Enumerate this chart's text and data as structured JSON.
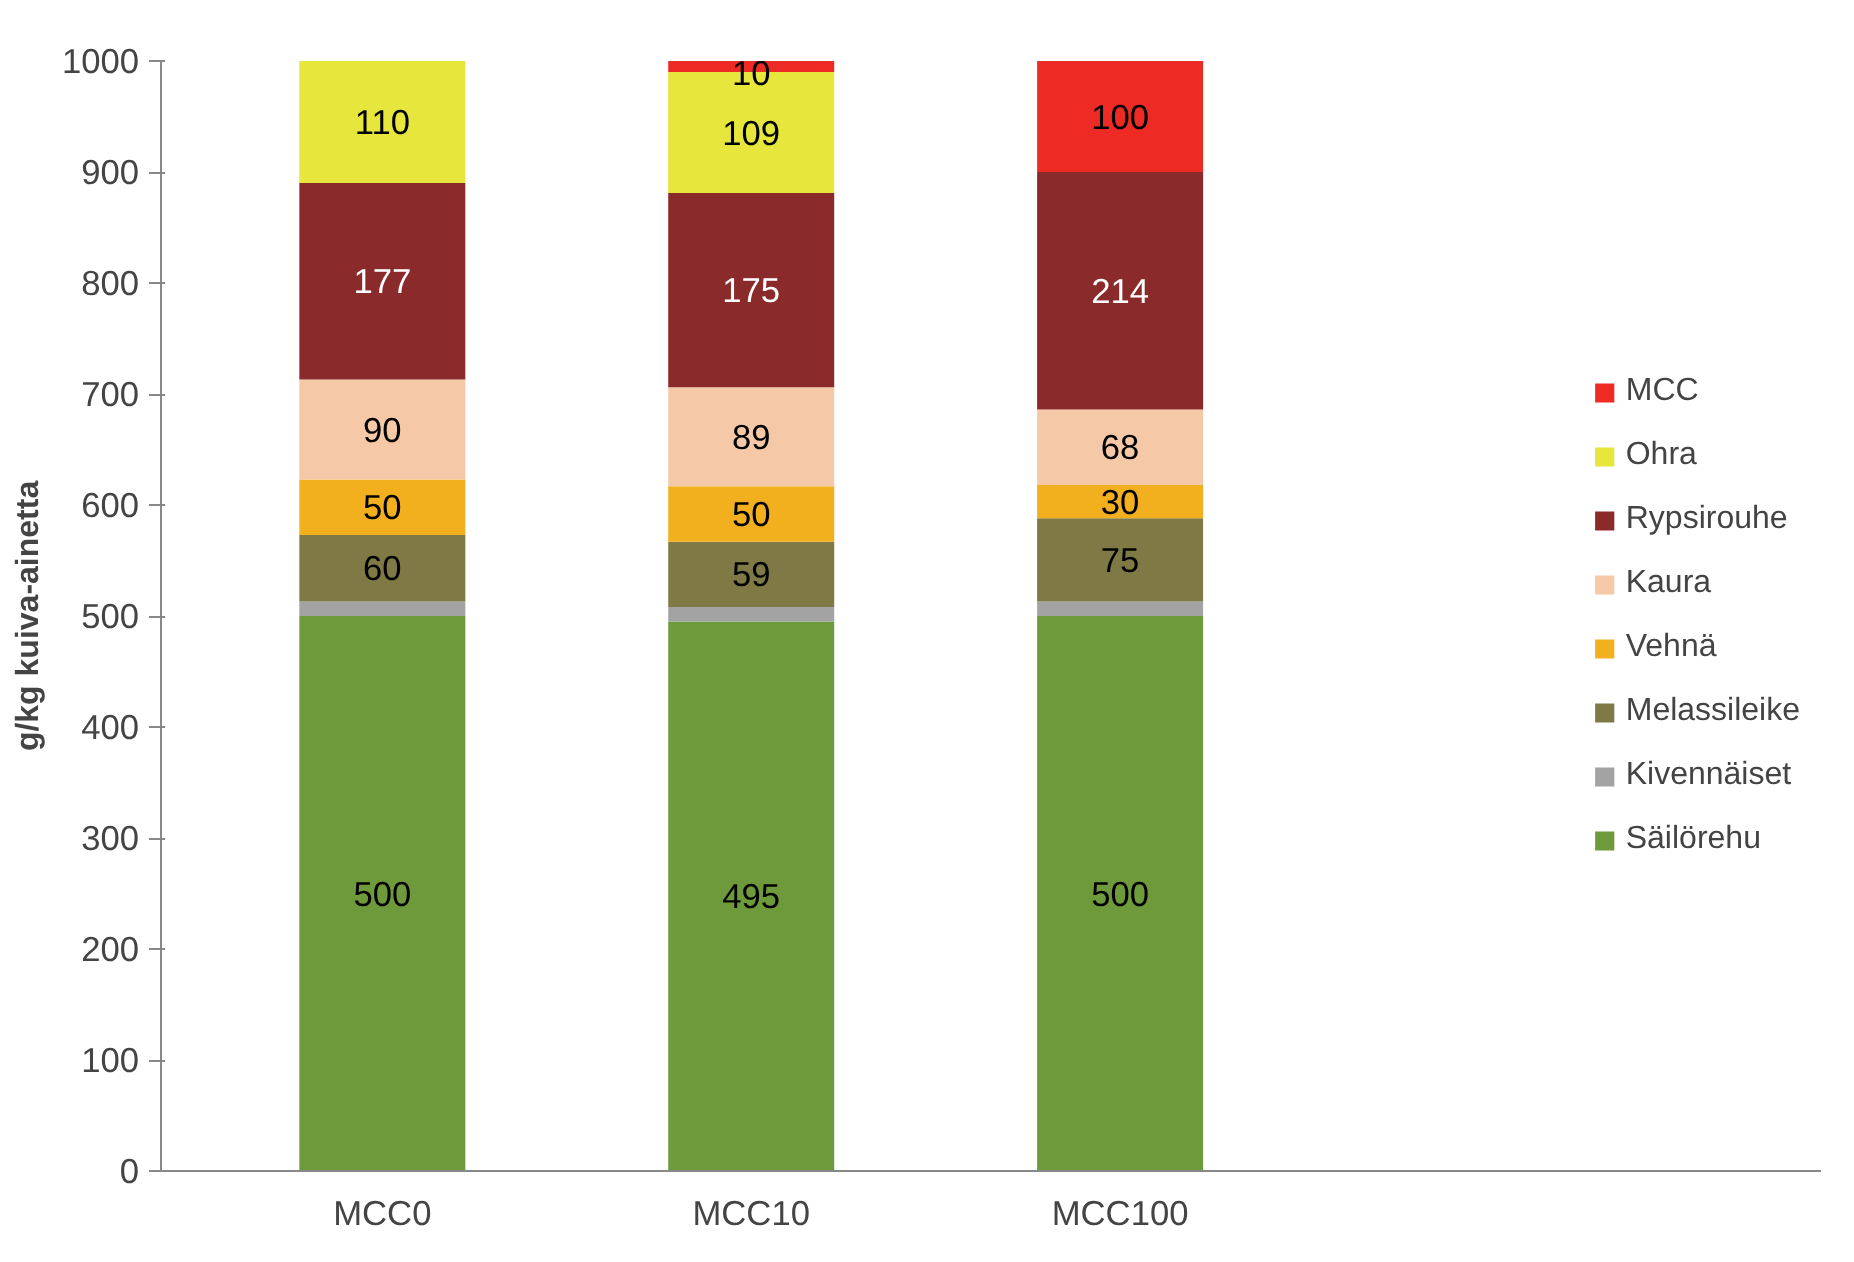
{
  "chart_data": {
    "type": "bar",
    "stacked": true,
    "ylabel": "g/kg kuiva-ainetta",
    "categories": [
      "MCC0",
      "MCC10",
      "MCC100"
    ],
    "series": [
      {
        "name": "Säilörehu",
        "color": "#6f9a3c",
        "values": [
          500,
          495,
          500
        ],
        "value_labels": [
          "500",
          "495",
          "500"
        ]
      },
      {
        "name": "Kivennäiset",
        "color": "#a3a3a3",
        "values": [
          13,
          13,
          13
        ],
        "value_labels": [
          null,
          null,
          null
        ]
      },
      {
        "name": "Melassileike",
        "color": "#7f7a45",
        "values": [
          60,
          59,
          75
        ],
        "value_labels": [
          "60",
          "59",
          "75"
        ]
      },
      {
        "name": "Vehnä",
        "color": "#f2b01e",
        "values": [
          50,
          50,
          30
        ],
        "value_labels": [
          "50",
          "50",
          "30"
        ]
      },
      {
        "name": "Kaura",
        "color": "#f5c9a8",
        "values": [
          90,
          89,
          68
        ],
        "value_labels": [
          "90",
          "89",
          "68"
        ]
      },
      {
        "name": "Rypsirouhe",
        "color": "#8b2a2a",
        "values": [
          177,
          175,
          214
        ],
        "value_labels": [
          "177",
          "175",
          "214"
        ]
      },
      {
        "name": "Ohra",
        "color": "#e6e63c",
        "values": [
          110,
          109,
          null
        ],
        "value_labels": [
          "110",
          "109",
          null
        ]
      },
      {
        "name": "MCC",
        "color": "#ee2a24",
        "values": [
          null,
          10,
          100
        ],
        "value_labels": [
          null,
          "10",
          "100"
        ]
      }
    ],
    "ylim": [
      0,
      1000
    ],
    "yticks": [
      0,
      100,
      200,
      300,
      400,
      500,
      600,
      700,
      800,
      900,
      1000
    ],
    "grid": false,
    "legend": "right"
  }
}
